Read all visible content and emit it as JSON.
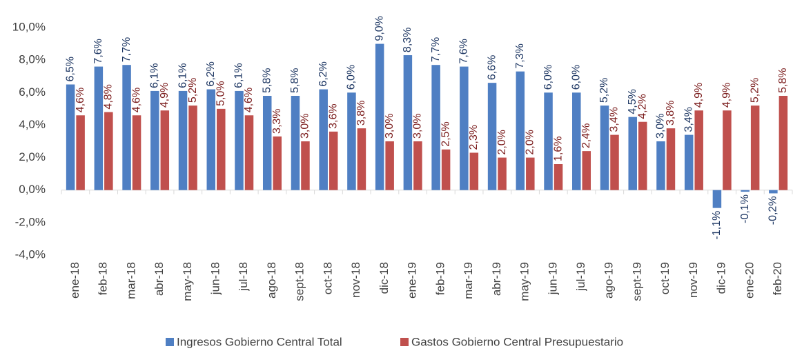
{
  "chart_data": {
    "type": "bar",
    "categories": [
      "ene-18",
      "feb-18",
      "mar-18",
      "abr-18",
      "may-18",
      "jun-18",
      "jul-18",
      "ago-18",
      "sept-18",
      "oct-18",
      "nov-18",
      "dic-18",
      "ene-19",
      "feb-19",
      "mar-19",
      "abr-19",
      "may-19",
      "jun-19",
      "jul-19",
      "ago-19",
      "sept-19",
      "oct-19",
      "nov-19",
      "dic-19",
      "ene-20",
      "feb-20"
    ],
    "series": [
      {
        "name": "Ingresos Gobierno Central Total",
        "color": "#4f7fc3",
        "values": [
          6.5,
          7.6,
          7.7,
          6.1,
          6.1,
          6.2,
          6.1,
          5.8,
          5.8,
          6.2,
          6.0,
          9.0,
          8.3,
          7.7,
          7.6,
          6.6,
          7.3,
          6.0,
          6.0,
          5.2,
          4.5,
          3.0,
          3.4,
          -1.1,
          -0.1,
          -0.2
        ],
        "value_labels": [
          "6,5%",
          "7,6%",
          "7,7%",
          "6,1%",
          "6,1%",
          "6,2%",
          "6,1%",
          "5,8%",
          "5,8%",
          "6,2%",
          "6,0%",
          "9,0%",
          "8,3%",
          "7,7%",
          "7,6%",
          "6,6%",
          "7,3%",
          "6,0%",
          "6,0%",
          "5,2%",
          "4,5%",
          "3,0%",
          "3,4%",
          "-1,1%",
          "-0,1%",
          "-0,2%"
        ]
      },
      {
        "name": "Gastos Gobierno Central Presupuestario",
        "color": "#c0504d",
        "values": [
          4.6,
          4.8,
          4.6,
          4.9,
          5.2,
          5.0,
          4.6,
          3.3,
          3.0,
          3.6,
          3.8,
          3.0,
          3.0,
          2.5,
          2.3,
          2.0,
          2.0,
          1.6,
          2.4,
          3.4,
          4.2,
          3.8,
          4.9,
          4.9,
          5.2,
          5.8
        ],
        "value_labels": [
          "4,6%",
          "4,8%",
          "4,6%",
          "4,9%",
          "5,2%",
          "5,0%",
          "4,6%",
          "3,3%",
          "3,0%",
          "3,6%",
          "3,8%",
          "3,0%",
          "3,0%",
          "2,5%",
          "2,3%",
          "2,0%",
          "2,0%",
          "1,6%",
          "2,4%",
          "3,4%",
          "4,2%",
          "3,8%",
          "4,9%",
          "4,9%",
          "5,2%",
          "5,8%"
        ]
      }
    ],
    "ylim": [
      -4,
      10
    ],
    "yticks": [
      {
        "value": -4,
        "label": "-4,0%"
      },
      {
        "value": -2,
        "label": "-2,0%"
      },
      {
        "value": 0,
        "label": "0,0%"
      },
      {
        "value": 2,
        "label": "2,0%"
      },
      {
        "value": 4,
        "label": "4,0%"
      },
      {
        "value": 6,
        "label": "6,0%"
      },
      {
        "value": 8,
        "label": "8,0%"
      },
      {
        "value": 10,
        "label": "10,0%"
      }
    ],
    "grid": false,
    "legend": "bottom"
  }
}
